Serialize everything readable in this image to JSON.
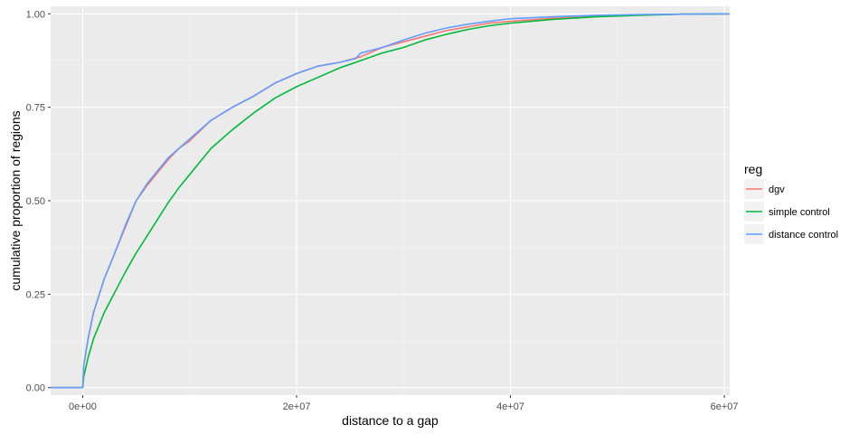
{
  "chart_data": {
    "type": "line",
    "xlabel": "distance to a gap",
    "ylabel": "cumulative proportion of regions",
    "xlim": [
      -3000000,
      60500000
    ],
    "ylim": [
      -0.02,
      1.02
    ],
    "x_ticks": [
      0,
      20000000,
      40000000,
      60000000
    ],
    "x_tick_labels": [
      "0e+00",
      "2e+07",
      "4e+07",
      "6e+07"
    ],
    "y_ticks": [
      0,
      0.25,
      0.5,
      0.75,
      1.0
    ],
    "y_tick_labels": [
      "0.00",
      "0.25",
      "0.50",
      "0.75",
      "1.00"
    ],
    "grid": true,
    "background": "#ebebeb",
    "legend": {
      "title": "reg",
      "position": "right",
      "entries": [
        "dgv",
        "simple control",
        "distance control"
      ]
    },
    "series": [
      {
        "name": "dgv",
        "color": "#F8766D",
        "x": [
          -3000000,
          0,
          100000,
          500000,
          1000000,
          2000000,
          3000000,
          4000000,
          5000000,
          6000000,
          7000000,
          8000000,
          9000000,
          10000000,
          12000000,
          14000000,
          16000000,
          18000000,
          20000000,
          22000000,
          24000000,
          26000000,
          28000000,
          30000000,
          32000000,
          34000000,
          36000000,
          38000000,
          40000000,
          44000000,
          48000000,
          52000000,
          56000000,
          60500000
        ],
        "y": [
          0,
          0,
          0.06,
          0.13,
          0.2,
          0.29,
          0.36,
          0.43,
          0.5,
          0.54,
          0.575,
          0.61,
          0.64,
          0.66,
          0.715,
          0.75,
          0.78,
          0.815,
          0.84,
          0.86,
          0.87,
          0.885,
          0.91,
          0.925,
          0.94,
          0.955,
          0.965,
          0.975,
          0.98,
          0.988,
          0.993,
          0.997,
          0.999,
          1.0
        ]
      },
      {
        "name": "simple control",
        "color": "#00BA38",
        "x": [
          -3000000,
          0,
          100000,
          500000,
          1000000,
          2000000,
          3000000,
          4000000,
          5000000,
          6000000,
          7000000,
          8000000,
          9000000,
          10000000,
          12000000,
          14000000,
          16000000,
          18000000,
          20000000,
          22000000,
          24000000,
          26000000,
          28000000,
          30000000,
          32000000,
          34000000,
          36000000,
          38000000,
          40000000,
          44000000,
          48000000,
          52000000,
          56000000,
          60500000
        ],
        "y": [
          0,
          0,
          0.03,
          0.08,
          0.13,
          0.2,
          0.255,
          0.31,
          0.36,
          0.405,
          0.45,
          0.495,
          0.535,
          0.57,
          0.64,
          0.69,
          0.735,
          0.775,
          0.805,
          0.83,
          0.855,
          0.875,
          0.895,
          0.91,
          0.93,
          0.945,
          0.958,
          0.968,
          0.975,
          0.985,
          0.992,
          0.996,
          0.999,
          1.0
        ]
      },
      {
        "name": "distance control",
        "color": "#619CFF",
        "x": [
          -3000000,
          0,
          100000,
          500000,
          1000000,
          2000000,
          3000000,
          4000000,
          5000000,
          6000000,
          7000000,
          8000000,
          9000000,
          10000000,
          12000000,
          14000000,
          16000000,
          18000000,
          20000000,
          22000000,
          24000000,
          25500000,
          26000000,
          28000000,
          30000000,
          32000000,
          34000000,
          36000000,
          38000000,
          40000000,
          44000000,
          48000000,
          52000000,
          56000000,
          60500000
        ],
        "y": [
          0,
          0,
          0.06,
          0.13,
          0.2,
          0.29,
          0.36,
          0.435,
          0.5,
          0.545,
          0.58,
          0.615,
          0.64,
          0.665,
          0.715,
          0.75,
          0.78,
          0.815,
          0.84,
          0.86,
          0.87,
          0.88,
          0.895,
          0.91,
          0.93,
          0.948,
          0.962,
          0.972,
          0.98,
          0.987,
          0.992,
          0.996,
          0.998,
          0.999,
          1.0
        ]
      }
    ]
  }
}
